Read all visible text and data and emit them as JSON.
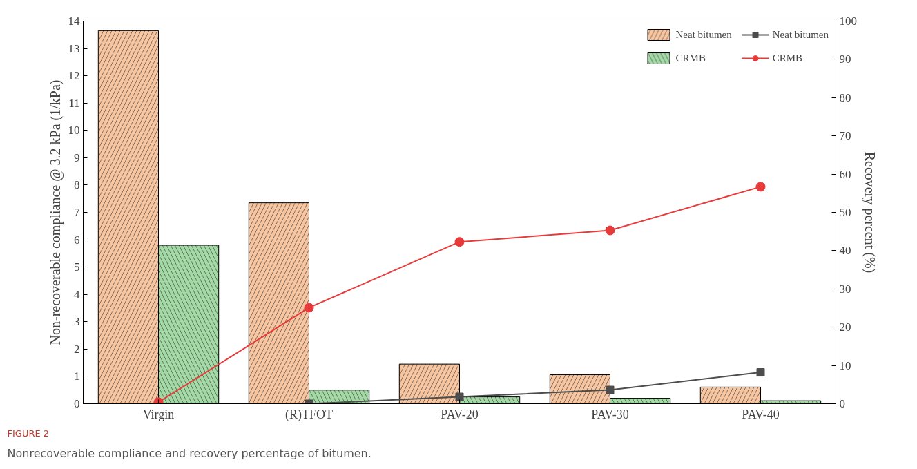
{
  "chart_data": {
    "type": "bar",
    "xlabel": null,
    "ylabel": "Non-recoverable compliance @ 3.2 kPa (1/kPa)",
    "y2label": "Recovery percent (%)",
    "categories": [
      "Virgin",
      "(R)TFOT",
      "PAV-20",
      "PAV-30",
      "PAV-40"
    ],
    "series": [
      {
        "name": "Neat bitumen",
        "color": "#f7c59f",
        "values": [
          13.65,
          7.35,
          1.45,
          1.06,
          0.61
        ]
      },
      {
        "name": "CRMB",
        "color": "#a3d9a5",
        "values": [
          5.8,
          0.5,
          0.25,
          0.2,
          0.11
        ]
      },
      {
        "name": "Neat bitumen",
        "type": "line",
        "axis": "y2",
        "color": "#4d4d4d",
        "marker": "square",
        "values": [
          null,
          0,
          1.8,
          3.6,
          8.2
        ]
      },
      {
        "name": "CRMB",
        "type": "line",
        "axis": "y2",
        "color": "#e83a3a",
        "marker": "circle",
        "values": [
          0.4,
          25.1,
          42.3,
          45.3,
          56.7
        ]
      }
    ],
    "ylim": [
      0,
      14
    ],
    "yticks": [
      0,
      1,
      2,
      3,
      4,
      5,
      6,
      7,
      8,
      9,
      10,
      11,
      12,
      13,
      14
    ],
    "y2lim": [
      0,
      100
    ],
    "y2ticks": [
      0,
      10,
      20,
      30,
      40,
      50,
      60,
      70,
      80,
      90,
      100
    ],
    "grid": false,
    "legend": "top right",
    "annotations": [
      "FIGURE 2",
      "Nonrecoverable compliance and recovery percentage of bitumen."
    ]
  }
}
